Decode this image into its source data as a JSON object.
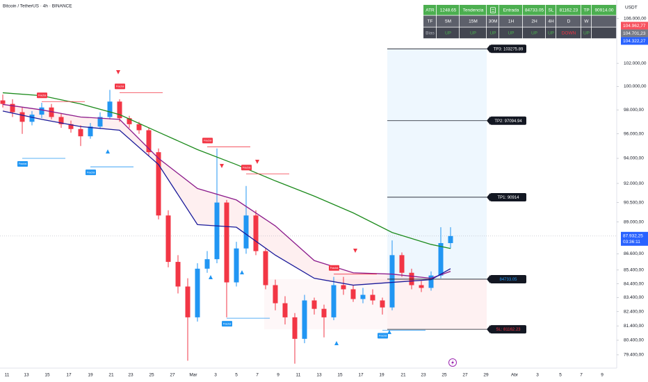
{
  "chart_data": {
    "type": "candlestick",
    "title": "Bitcoin / TetherUS · 4h · BINANCE",
    "currency": "USDT",
    "log_scale": true,
    "grid": false,
    "up_color": "#2196f3",
    "down_color": "#f23645",
    "ylim": [
      78500,
      107700
    ],
    "yticks": [
      {
        "value": 106000,
        "label": "106.000,00"
      },
      {
        "value": 102000,
        "label": "102.000,00"
      },
      {
        "value": 100000,
        "label": "100.000,00"
      },
      {
        "value": 98000,
        "label": "98.000,00"
      },
      {
        "value": 96000,
        "label": "96.000,00"
      },
      {
        "value": 94000,
        "label": "94.000,00"
      },
      {
        "value": 92000,
        "label": "92.000,00"
      },
      {
        "value": 90500,
        "label": "90.500,00"
      },
      {
        "value": 89000,
        "label": "89.000,00"
      },
      {
        "value": 86600,
        "label": "86.600,00"
      },
      {
        "value": 85400,
        "label": "85.400,00"
      },
      {
        "value": 84400,
        "label": "84.400,00"
      },
      {
        "value": 83400,
        "label": "83.400,00"
      },
      {
        "value": 82400,
        "label": "82.400,00"
      },
      {
        "value": 81400,
        "label": "81.400,00"
      },
      {
        "value": 80400,
        "label": "80.400,00"
      },
      {
        "value": 79400,
        "label": "79.400,00"
      }
    ],
    "x_axis_labels": [
      "11",
      "13",
      "15",
      "17",
      "19",
      "21",
      "23",
      "25",
      "27",
      "Mar",
      "3",
      "5",
      "7",
      "9",
      "11",
      "13",
      "15",
      "17",
      "19",
      "21",
      "23",
      "25",
      "27",
      "29",
      "Abr",
      "3",
      "5",
      "7",
      "9"
    ],
    "open": [
      98800,
      98500,
      97800,
      97000,
      97600,
      98200,
      97400,
      96800,
      96400,
      95800,
      96600,
      97400,
      98700,
      97300,
      96800,
      96300,
      94500,
      89500,
      86000,
      84200,
      82000,
      85500,
      86200,
      90500,
      84500,
      87000,
      89500,
      86800,
      84300,
      83000,
      82000,
      80500,
      83200,
      82600,
      82000,
      84300,
      84000,
      83300,
      83600,
      83200,
      82700,
      86500,
      85200,
      84300,
      84100,
      85000,
      87400
    ],
    "high": [
      99300,
      98900,
      98200,
      97900,
      98600,
      98500,
      97700,
      97100,
      96700,
      96900,
      97800,
      99700,
      98900,
      97500,
      97000,
      96500,
      94800,
      89900,
      86500,
      84800,
      85900,
      86800,
      94800,
      90700,
      87500,
      91800,
      89900,
      87000,
      84700,
      83500,
      82300,
      83600,
      83400,
      82900,
      84900,
      84900,
      84300,
      84100,
      84000,
      83400,
      87600,
      86700,
      85500,
      84600,
      85300,
      88600,
      88600
    ],
    "low": [
      98200,
      97400,
      96000,
      96700,
      97300,
      97200,
      96500,
      96100,
      95000,
      95600,
      96400,
      97200,
      97000,
      96500,
      96000,
      94200,
      89200,
      85600,
      83700,
      79000,
      81700,
      85200,
      85900,
      82000,
      84200,
      86600,
      86500,
      84000,
      82500,
      81500,
      78800,
      80200,
      82200,
      80600,
      81800,
      83600,
      83100,
      83000,
      82900,
      82200,
      82500,
      84900,
      84000,
      83800,
      83900,
      84800,
      87000
    ],
    "close": [
      98500,
      97800,
      97000,
      97600,
      98200,
      97400,
      96800,
      96400,
      95800,
      96600,
      97400,
      98700,
      97300,
      96800,
      96300,
      94500,
      89500,
      86000,
      84200,
      82000,
      85500,
      86200,
      90500,
      84500,
      87000,
      89500,
      86800,
      84300,
      83000,
      82000,
      80500,
      83200,
      82600,
      82000,
      84300,
      84000,
      83300,
      83600,
      83200,
      82700,
      86500,
      85200,
      84300,
      84100,
      85000,
      87400,
      87932.25
    ],
    "ma_lines": [
      {
        "color": "#1b8a1b",
        "x": [
          0,
          4,
          8,
          12,
          16,
          20,
          24,
          28,
          32,
          36,
          40,
          44,
          46
        ],
        "values": [
          99450,
          99200,
          98500,
          97600,
          96140,
          94710,
          93500,
          92200,
          91000,
          89700,
          88200,
          87300,
          87000
        ]
      },
      {
        "color": "#8b1a8b",
        "x": [
          0,
          4,
          8,
          12,
          16,
          20,
          24,
          28,
          32,
          36,
          40,
          44,
          46
        ],
        "values": [
          98460,
          98000,
          97400,
          97200,
          94000,
          91600,
          90700,
          88700,
          86100,
          85200,
          85100,
          84800,
          85300
        ]
      },
      {
        "color": "#1a1a9a",
        "x": [
          0,
          4,
          8,
          12,
          16,
          20,
          24,
          28,
          32,
          36,
          40,
          44,
          46
        ],
        "values": [
          97900,
          97200,
          96600,
          96300,
          93500,
          88800,
          88600,
          86500,
          84800,
          84300,
          84500,
          84700,
          85500
        ]
      }
    ],
    "fractals": [
      {
        "label": "Fractal",
        "kind": "high",
        "x": 4,
        "value": 98700,
        "color": "#f23645"
      },
      {
        "label": "Fractal",
        "kind": "high",
        "x": 12,
        "value": 99460,
        "color": "#f23645"
      },
      {
        "label": "Fractal",
        "kind": "high",
        "x": 21,
        "value": 94940,
        "color": "#f23645"
      },
      {
        "label": "Fractal",
        "kind": "high",
        "x": 25,
        "value": 92760,
        "color": "#f23645"
      },
      {
        "label": "Fractal",
        "kind": "high",
        "x": 34,
        "value": 85100,
        "color": "#f23645"
      },
      {
        "label": "Fractal",
        "kind": "low",
        "x": 2,
        "value": 94000,
        "color": "#2196f3"
      },
      {
        "label": "Fractal",
        "kind": "low",
        "x": 9,
        "value": 93320,
        "color": "#2196f3"
      },
      {
        "label": "Fractal",
        "kind": "low",
        "x": 23,
        "value": 81940,
        "color": "#2196f3"
      },
      {
        "label": "Fractal",
        "kind": "low",
        "x": 39,
        "value": 81100,
        "color": "#2196f3"
      }
    ],
    "levels": [
      {
        "label": "TP3: 103275.89",
        "value": 103275.89,
        "color": "#ffffff"
      },
      {
        "label": "TP2: 97094.94",
        "value": 97094.94,
        "color": "#ffffff"
      },
      {
        "label": "TP1: 90914",
        "value": 90914,
        "color": "#ffffff"
      },
      {
        "label": "84733.05",
        "value": 84733.05,
        "color": "#2196f3"
      },
      {
        "label": "SL: 81162.23",
        "value": 81162.23,
        "color": "#f23645"
      }
    ],
    "price_tags": [
      {
        "value": 104962.77,
        "label": "104.962,77",
        "color": "#f7525f"
      },
      {
        "value": 104701.23,
        "label": "104.701,23",
        "color": "#787b86"
      },
      {
        "value": 104322.27,
        "label": "104.322,27",
        "color": "#2962ff"
      }
    ],
    "last_price": {
      "value": 87932.25,
      "label": "87.932,25",
      "countdown": "03:36:11",
      "color": "#2962ff"
    }
  },
  "table": {
    "rows": [
      [
        "ATR",
        "1248.65",
        "Tendencia",
        "Entrada",
        "84733.05",
        "SL",
        "81162.23",
        "TP",
        "90914.00"
      ],
      [
        "TF",
        "5M",
        "15M",
        "30M",
        "1H",
        "2H",
        "4H",
        "D",
        "W"
      ],
      [
        "Bias",
        "UP",
        "UP",
        "UP",
        "UP",
        "UP",
        "UP",
        "DOWN",
        "UP"
      ]
    ],
    "row_colors": [
      "#4caf50",
      "#5d606b",
      "#434651"
    ],
    "text_colors": [
      [
        "#ffffff",
        "#ffffff",
        "#ffffff",
        "#ffffff",
        "#ffffff",
        "#ffffff",
        "#ffffff",
        "#ffffff",
        "#ffffff"
      ],
      [
        "#ffffff",
        "#ffffff",
        "#ffffff",
        "#ffffff",
        "#ffffff",
        "#ffffff",
        "#ffffff",
        "#ffffff",
        "#ffffff"
      ],
      [
        "#b2b5be",
        "#4caf50",
        "#4caf50",
        "#4caf50",
        "#4caf50",
        "#4caf50",
        "#4caf50",
        "#f23645",
        "#4caf50"
      ]
    ]
  }
}
